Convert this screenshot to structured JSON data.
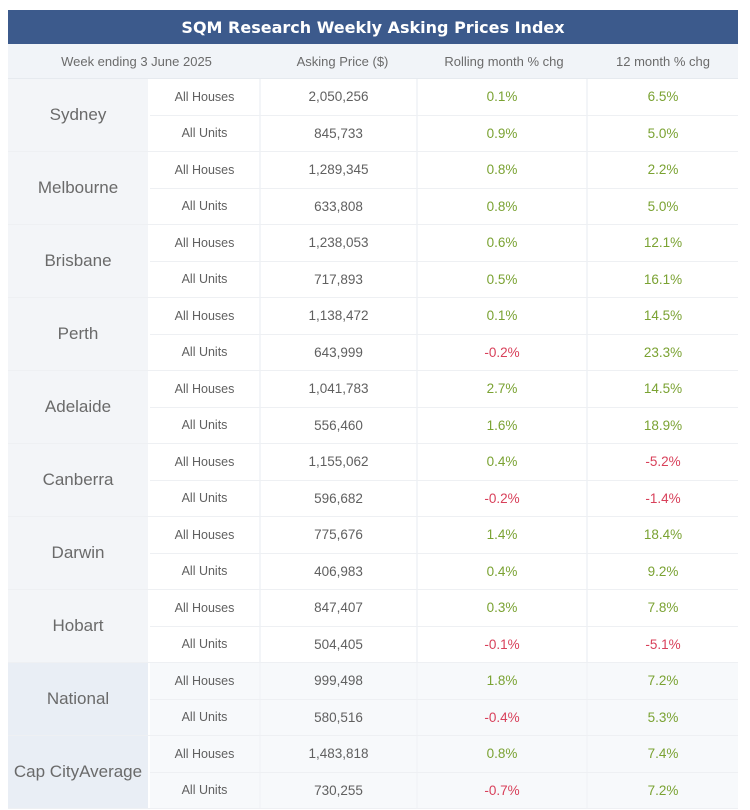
{
  "title": "SQM Research Weekly Asking Prices Index",
  "header": {
    "week": "Week ending 3 June 2025",
    "price": "Asking Price ($)",
    "rolling": "Rolling month % chg",
    "annual": "12 month % chg"
  },
  "colors": {
    "title_bg": "#3c5a8c",
    "positive": "#7aa232",
    "negative": "#d8405a"
  },
  "cities": [
    {
      "name": "Sydney",
      "rows": [
        {
          "type": "All Houses",
          "price": "2,050,256",
          "rolling": "0.1%",
          "annual": "6.5%"
        },
        {
          "type": "All Units",
          "price": "845,733",
          "rolling": "0.9%",
          "annual": "5.0%"
        }
      ]
    },
    {
      "name": "Melbourne",
      "rows": [
        {
          "type": "All Houses",
          "price": "1,289,345",
          "rolling": "0.8%",
          "annual": "2.2%"
        },
        {
          "type": "All Units",
          "price": "633,808",
          "rolling": "0.8%",
          "annual": "5.0%"
        }
      ]
    },
    {
      "name": "Brisbane",
      "rows": [
        {
          "type": "All Houses",
          "price": "1,238,053",
          "rolling": "0.6%",
          "annual": "12.1%"
        },
        {
          "type": "All Units",
          "price": "717,893",
          "rolling": "0.5%",
          "annual": "16.1%"
        }
      ]
    },
    {
      "name": "Perth",
      "rows": [
        {
          "type": "All Houses",
          "price": "1,138,472",
          "rolling": "0.1%",
          "annual": "14.5%"
        },
        {
          "type": "All Units",
          "price": "643,999",
          "rolling": "-0.2%",
          "annual": "23.3%"
        }
      ]
    },
    {
      "name": "Adelaide",
      "rows": [
        {
          "type": "All Houses",
          "price": "1,041,783",
          "rolling": "2.7%",
          "annual": "14.5%"
        },
        {
          "type": "All Units",
          "price": "556,460",
          "rolling": "1.6%",
          "annual": "18.9%"
        }
      ]
    },
    {
      "name": "Canberra",
      "rows": [
        {
          "type": "All Houses",
          "price": "1,155,062",
          "rolling": "0.4%",
          "annual": "-5.2%"
        },
        {
          "type": "All Units",
          "price": "596,682",
          "rolling": "-0.2%",
          "annual": "-1.4%"
        }
      ]
    },
    {
      "name": "Darwin",
      "rows": [
        {
          "type": "All Houses",
          "price": "775,676",
          "rolling": "1.4%",
          "annual": "18.4%"
        },
        {
          "type": "All Units",
          "price": "406,983",
          "rolling": "0.4%",
          "annual": "9.2%"
        }
      ]
    },
    {
      "name": "Hobart",
      "rows": [
        {
          "type": "All Houses",
          "price": "847,407",
          "rolling": "0.3%",
          "annual": "7.8%"
        },
        {
          "type": "All Units",
          "price": "504,405",
          "rolling": "-0.1%",
          "annual": "-5.1%"
        }
      ]
    },
    {
      "name": "National",
      "summary": true,
      "rows": [
        {
          "type": "All Houses",
          "price": "999,498",
          "rolling": "1.8%",
          "annual": "7.2%"
        },
        {
          "type": "All Units",
          "price": "580,516",
          "rolling": "-0.4%",
          "annual": "5.3%"
        }
      ]
    },
    {
      "name": "Cap City Average",
      "name_lines": [
        "Cap City",
        "Average"
      ],
      "summary": true,
      "rows": [
        {
          "type": "All Houses",
          "price": "1,483,818",
          "rolling": "0.8%",
          "annual": "7.4%"
        },
        {
          "type": "All Units",
          "price": "730,255",
          "rolling": "-0.7%",
          "annual": "7.2%"
        }
      ]
    }
  ]
}
